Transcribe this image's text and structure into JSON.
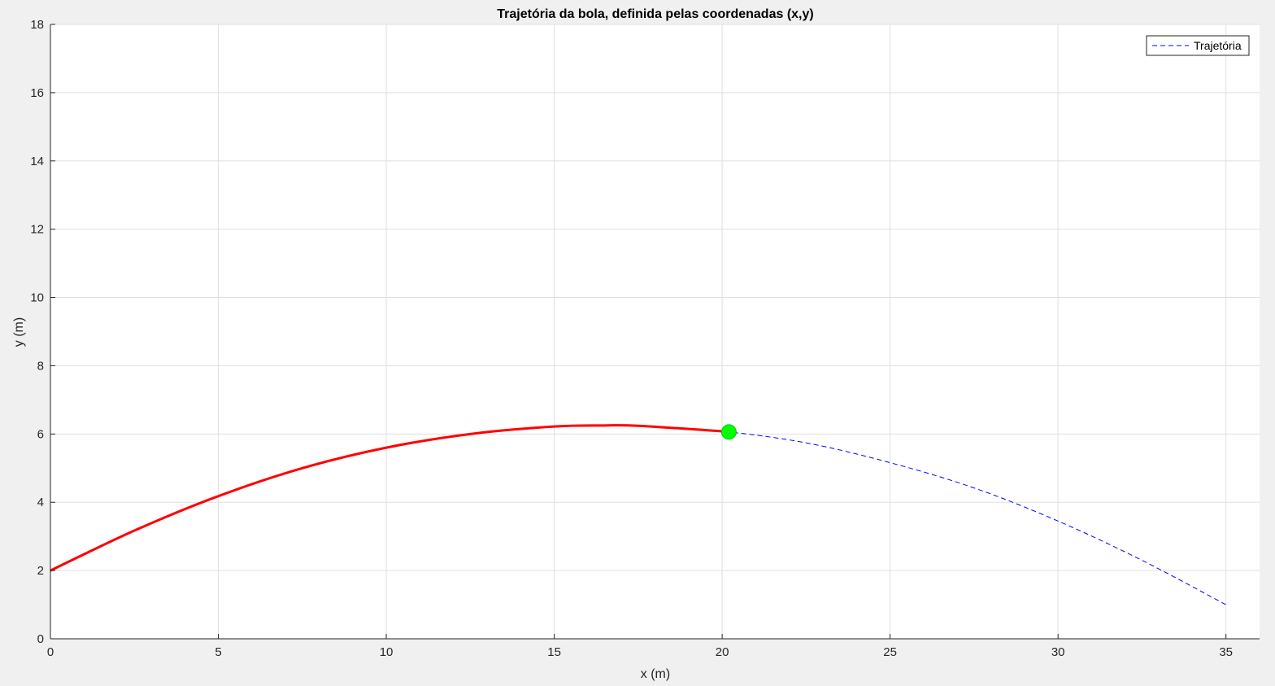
{
  "chart_data": {
    "type": "line",
    "title": "Trajetória da bola, definida pelas coordenadas (x,y)",
    "xlabel": "x (m)",
    "ylabel": "y (m)",
    "xlim": [
      0,
      36
    ],
    "ylim": [
      0,
      18
    ],
    "xticks": [
      0,
      5,
      10,
      15,
      20,
      25,
      30,
      35
    ],
    "yticks": [
      0,
      2,
      4,
      6,
      8,
      10,
      12,
      14,
      16,
      18
    ],
    "grid": true,
    "legend_position": "top-right",
    "series": [
      {
        "name": "Trajetória",
        "style": "dashed",
        "color": "#0000ff",
        "x": [
          0,
          2.5,
          5,
          7.5,
          10,
          12.5,
          15,
          16.5,
          17.5,
          20,
          22.5,
          25,
          27.5,
          30,
          32.5,
          35
        ],
        "y": [
          2.0,
          3.17,
          4.18,
          5.0,
          5.6,
          6.0,
          6.22,
          6.25,
          6.24,
          6.08,
          5.74,
          5.16,
          4.42,
          3.45,
          2.3,
          1.0
        ]
      },
      {
        "style": "solid",
        "color": "#ff0000",
        "x": [
          0,
          2.5,
          5,
          7.5,
          10,
          12.5,
          15,
          16.5,
          17.5,
          20,
          20.2
        ],
        "y": [
          2.0,
          3.17,
          4.18,
          5.0,
          5.6,
          6.0,
          6.22,
          6.25,
          6.24,
          6.08,
          6.06
        ]
      }
    ],
    "marker": {
      "x": 20.2,
      "y": 6.06,
      "color": "#00ff00"
    }
  }
}
